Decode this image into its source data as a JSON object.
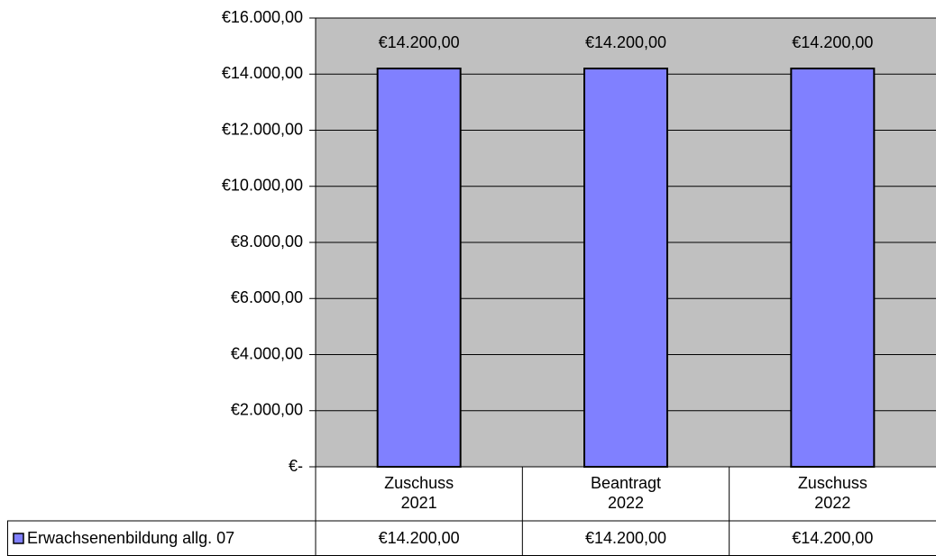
{
  "chart_data": {
    "type": "bar",
    "categories": [
      "Zuschuss 2021",
      "Beantragt 2022",
      "Zuschuss 2022"
    ],
    "series": [
      {
        "name": "Erwachsenenbildung allg. 07",
        "color": "#8080ff",
        "values": [
          14200,
          14200,
          14200
        ],
        "value_labels": [
          "€14.200,00",
          "€14.200,00",
          "€14.200,00"
        ]
      }
    ],
    "ylim": [
      0,
      16000
    ],
    "yticks": [
      {
        "value": 0,
        "label": "€-"
      },
      {
        "value": 2000,
        "label": "€2.000,00"
      },
      {
        "value": 4000,
        "label": "€4.000,00"
      },
      {
        "value": 6000,
        "label": "€6.000,00"
      },
      {
        "value": 8000,
        "label": "€8.000,00"
      },
      {
        "value": 10000,
        "label": "€10.000,00"
      },
      {
        "value": 12000,
        "label": "€12.000,00"
      },
      {
        "value": 14000,
        "label": "€14.000,00"
      },
      {
        "value": 16000,
        "label": "€16.000,00"
      }
    ],
    "grid": true
  }
}
